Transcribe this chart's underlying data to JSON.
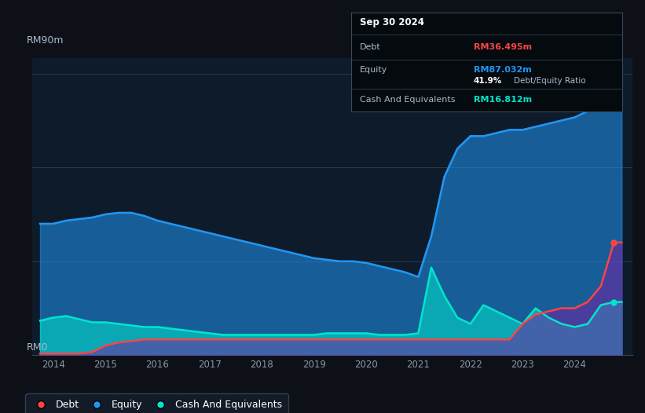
{
  "bg_color": "#0d1117",
  "plot_bg_color": "#0d1b2a",
  "ylabel": "RM90m",
  "y0_label": "RM0",
  "xlabel_ticks": [
    "2014",
    "2015",
    "2016",
    "2017",
    "2018",
    "2019",
    "2020",
    "2021",
    "2022",
    "2023",
    "2024"
  ],
  "tooltip": {
    "title": "Sep 30 2024",
    "debt_label": "Debt",
    "debt_value": "RM36.495m",
    "equity_label": "Equity",
    "equity_value": "RM87.032m",
    "ratio_value": "41.9%",
    "ratio_label": "Debt/Equity Ratio",
    "cash_label": "Cash And Equivalents",
    "cash_value": "RM16.812m"
  },
  "debt_color": "#ff4444",
  "equity_color": "#2196f3",
  "cash_color": "#00e5cc",
  "legend_labels": [
    "Debt",
    "Equity",
    "Cash And Equivalents"
  ],
  "years": [
    2013.75,
    2014.0,
    2014.25,
    2014.5,
    2014.75,
    2015.0,
    2015.25,
    2015.5,
    2015.75,
    2016.0,
    2016.25,
    2016.5,
    2016.75,
    2017.0,
    2017.25,
    2017.5,
    2017.75,
    2018.0,
    2018.25,
    2018.5,
    2018.75,
    2019.0,
    2019.25,
    2019.5,
    2019.75,
    2020.0,
    2020.25,
    2020.5,
    2020.75,
    2021.0,
    2021.25,
    2021.5,
    2021.75,
    2022.0,
    2022.25,
    2022.5,
    2022.75,
    2023.0,
    2023.25,
    2023.5,
    2023.75,
    2024.0,
    2024.25,
    2024.5,
    2024.75,
    2024.9
  ],
  "equity": [
    42,
    42,
    43,
    43.5,
    44,
    45,
    45.5,
    45.5,
    44.5,
    43,
    42,
    41,
    40,
    39,
    38,
    37,
    36,
    35,
    34,
    33,
    32,
    31,
    30.5,
    30,
    30,
    29.5,
    28.5,
    27.5,
    26.5,
    25,
    38,
    57,
    66,
    70,
    70,
    71,
    72,
    72,
    73,
    74,
    75,
    76,
    78,
    81,
    87,
    87
  ],
  "debt": [
    0.5,
    0.5,
    0.5,
    0.5,
    1,
    3,
    4,
    4.5,
    5,
    5,
    5,
    5,
    5,
    5,
    5,
    5,
    5,
    5,
    5,
    5,
    5,
    5,
    5,
    5,
    5,
    5,
    5,
    5,
    5,
    5,
    5,
    5,
    5,
    5,
    5,
    5,
    5,
    10,
    13,
    14,
    15,
    15,
    17,
    22,
    36,
    36
  ],
  "cash": [
    11,
    12,
    12.5,
    11.5,
    10.5,
    10.5,
    10,
    9.5,
    9,
    9,
    8.5,
    8,
    7.5,
    7,
    6.5,
    6.5,
    6.5,
    6.5,
    6.5,
    6.5,
    6.5,
    6.5,
    7,
    7,
    7,
    7,
    6.5,
    6.5,
    6.5,
    7,
    28,
    19,
    12,
    10,
    16,
    14,
    12,
    10,
    15,
    12,
    10,
    9,
    10,
    16,
    17,
    17
  ],
  "ylim": [
    0,
    95
  ],
  "xlim": [
    2013.6,
    2025.1
  ],
  "grid_lines": [
    0,
    30,
    60,
    90
  ]
}
